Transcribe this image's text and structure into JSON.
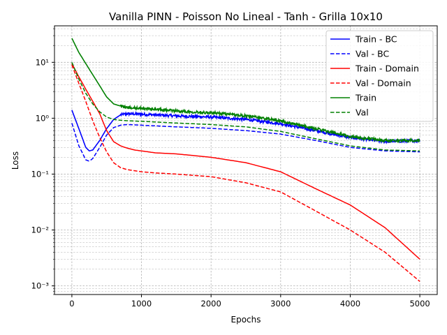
{
  "chart_data": {
    "type": "line",
    "title": "Vanilla PINN - Poisson No Lineal - Tanh - Grilla 10x10",
    "xlabel": "Epochs",
    "ylabel": "Loss",
    "xlim": [
      -250,
      5250
    ],
    "ylim": [
      0.0007,
      45
    ],
    "yscale": "log",
    "grid": true,
    "legend_position": "top-right",
    "x_ticks": [
      0,
      1000,
      2000,
      3000,
      4000,
      5000
    ],
    "x_tick_labels": [
      "0",
      "1000",
      "2000",
      "3000",
      "4000",
      "5000"
    ],
    "y_ticks": [
      0.001,
      0.01,
      0.1,
      1,
      10
    ],
    "y_tick_labels": [
      "10⁻³",
      "10⁻²",
      "10⁻¹",
      "10⁰",
      "10¹"
    ],
    "series": [
      {
        "name": "Train - BC",
        "color": "#0000ff",
        "dash": "solid",
        "noisy": true,
        "x": [
          0,
          100,
          200,
          250,
          300,
          400,
          500,
          600,
          700,
          800,
          1000,
          1500,
          2000,
          2500,
          3000,
          3500,
          4000,
          4500,
          5000
        ],
        "y": [
          1.4,
          0.65,
          0.3,
          0.26,
          0.27,
          0.4,
          0.65,
          0.95,
          1.15,
          1.2,
          1.18,
          1.1,
          1.05,
          0.95,
          0.8,
          0.6,
          0.45,
          0.38,
          0.4
        ]
      },
      {
        "name": "Val - BC",
        "color": "#0000ff",
        "dash": "dashed",
        "noisy": false,
        "x": [
          0,
          100,
          200,
          250,
          300,
          400,
          500,
          600,
          700,
          800,
          1000,
          1500,
          2000,
          2500,
          3000,
          3500,
          4000,
          4500,
          5000
        ],
        "y": [
          0.82,
          0.32,
          0.18,
          0.17,
          0.19,
          0.3,
          0.5,
          0.68,
          0.75,
          0.77,
          0.75,
          0.7,
          0.66,
          0.6,
          0.52,
          0.4,
          0.3,
          0.26,
          0.25
        ]
      },
      {
        "name": "Train - Domain",
        "color": "#ff0000",
        "dash": "solid",
        "noisy": false,
        "x": [
          0,
          100,
          200,
          300,
          400,
          500,
          600,
          700,
          800,
          900,
          1000,
          1200,
          1500,
          2000,
          2500,
          3000,
          3500,
          4000,
          4500,
          5000
        ],
        "y": [
          9.5,
          5.5,
          3.3,
          2.0,
          1.2,
          0.6,
          0.38,
          0.32,
          0.29,
          0.27,
          0.26,
          0.24,
          0.23,
          0.2,
          0.16,
          0.11,
          0.055,
          0.028,
          0.011,
          0.003
        ]
      },
      {
        "name": "Val - Domain",
        "color": "#ff0000",
        "dash": "dashed",
        "noisy": false,
        "x": [
          0,
          100,
          200,
          300,
          400,
          500,
          600,
          700,
          800,
          900,
          1000,
          1200,
          1500,
          2000,
          2500,
          3000,
          3500,
          4000,
          4500,
          5000
        ],
        "y": [
          9.0,
          4.2,
          2.0,
          0.9,
          0.45,
          0.25,
          0.16,
          0.13,
          0.12,
          0.115,
          0.11,
          0.105,
          0.1,
          0.09,
          0.07,
          0.048,
          0.022,
          0.01,
          0.004,
          0.0012
        ]
      },
      {
        "name": "Train",
        "color": "#008000",
        "dash": "solid",
        "noisy": true,
        "x": [
          0,
          100,
          200,
          300,
          400,
          500,
          600,
          700,
          800,
          1000,
          1500,
          2000,
          2500,
          3000,
          3500,
          4000,
          4500,
          5000
        ],
        "y": [
          27,
          15,
          9.5,
          6.0,
          3.8,
          2.4,
          1.8,
          1.65,
          1.55,
          1.5,
          1.35,
          1.25,
          1.1,
          0.9,
          0.65,
          0.47,
          0.4,
          0.4
        ]
      },
      {
        "name": "Val",
        "color": "#008000",
        "dash": "dashed",
        "noisy": false,
        "x": [
          0,
          100,
          200,
          300,
          400,
          500,
          600,
          700,
          800,
          1000,
          1500,
          2000,
          2500,
          3000,
          3500,
          4000,
          4500,
          5000
        ],
        "y": [
          10,
          5.0,
          2.8,
          1.8,
          1.3,
          1.05,
          0.95,
          0.92,
          0.9,
          0.88,
          0.82,
          0.77,
          0.7,
          0.58,
          0.43,
          0.32,
          0.27,
          0.26
        ]
      }
    ]
  }
}
